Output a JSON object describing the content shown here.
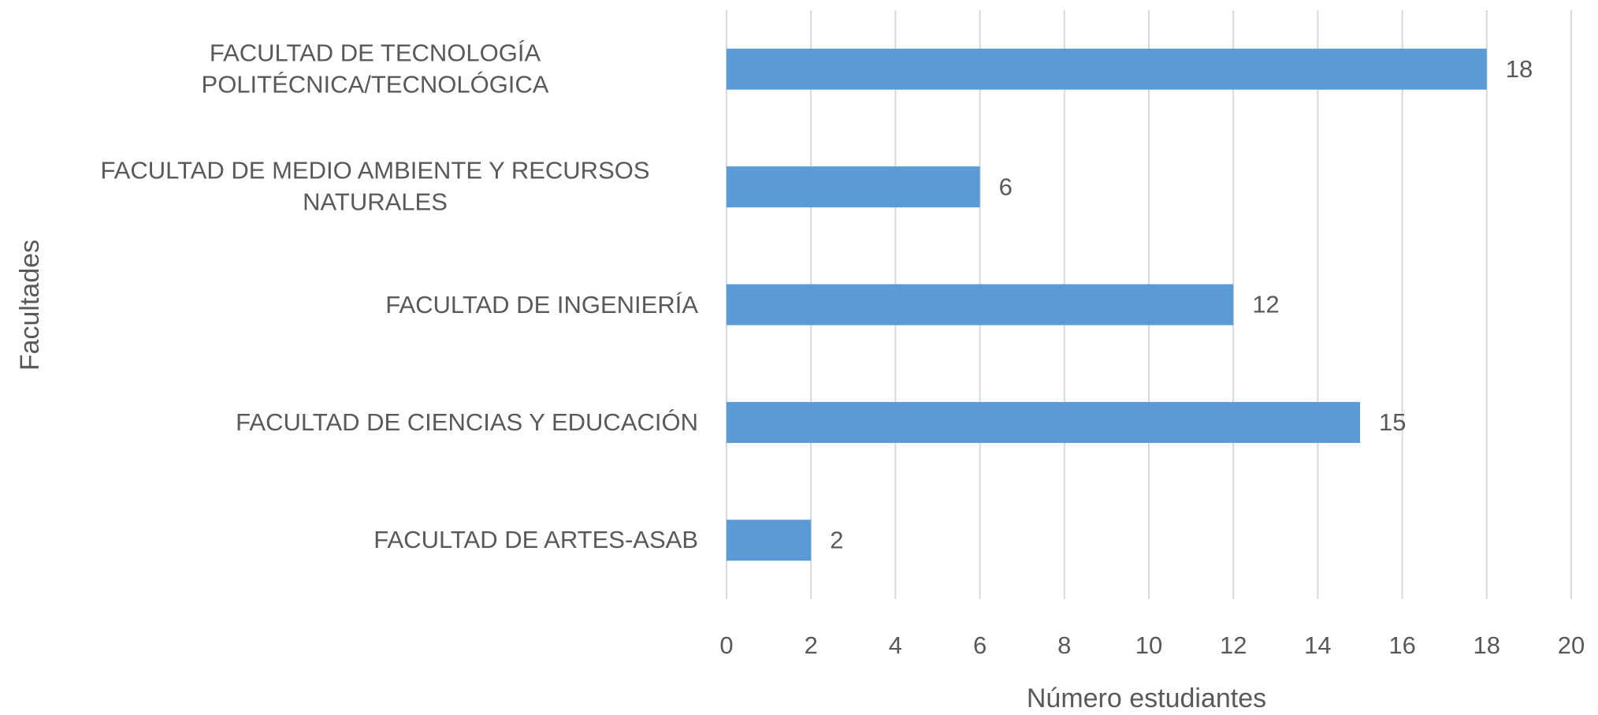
{
  "chart_data": {
    "type": "bar",
    "orientation": "horizontal",
    "x_label": "Número estudiantes",
    "y_label": "Facultades",
    "categories": [
      "FACULTAD DE TECNOLOGÍA POLITÉCNICA/TECNOLÓGICA",
      "FACULTAD DE MEDIO AMBIENTE Y RECURSOS NATURALES",
      "FACULTAD DE INGENIERÍA",
      "FACULTAD DE CIENCIAS Y EDUCACIÓN",
      "FACULTAD DE ARTES-ASAB"
    ],
    "values": [
      18,
      6,
      12,
      15,
      2
    ],
    "color": "#5b9bd5",
    "xlim": [
      0,
      20
    ],
    "xticks": [
      0,
      2,
      4,
      6,
      8,
      10,
      12,
      14,
      16,
      18,
      20
    ],
    "grid": true
  }
}
